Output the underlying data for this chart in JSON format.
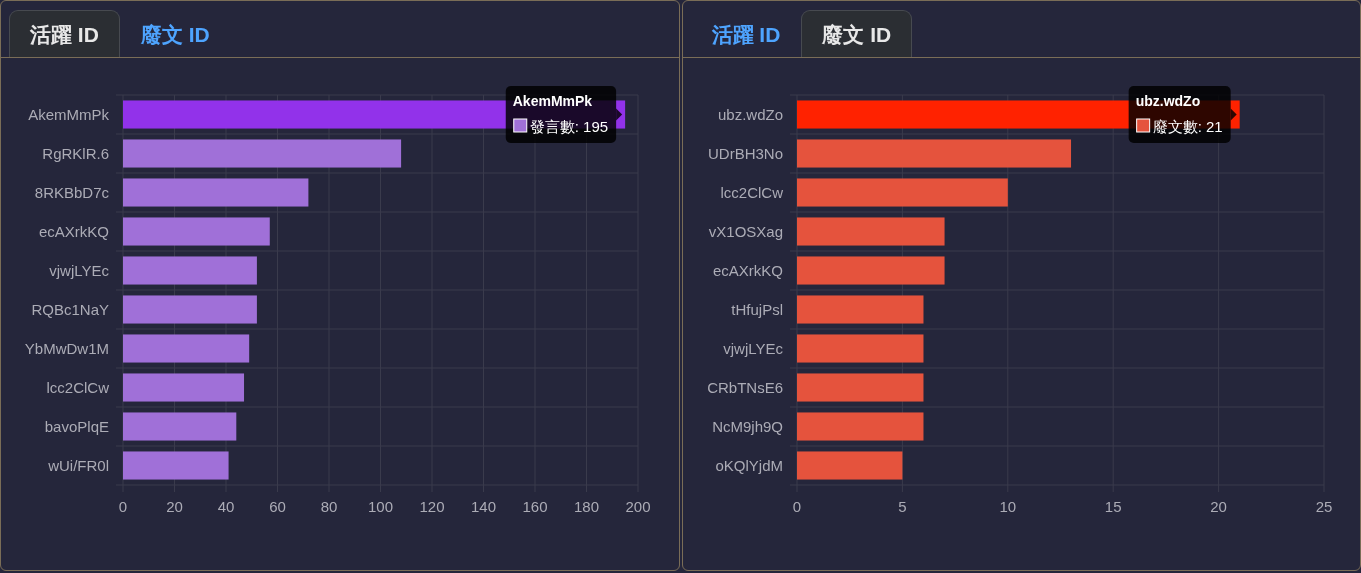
{
  "chart_data": [
    {
      "type": "bar",
      "orientation": "horizontal",
      "title": "活躍 ID",
      "annotations": [
        "廢文 ID"
      ],
      "categories": [
        "AkemMmPk",
        "RgRKlR.6",
        "8RKBbD7c",
        "ecAXrkKQ",
        "vjwjLYEc",
        "RQBc1NaY",
        "YbMwDw1M",
        "lcc2ClCw",
        "bavoPlqE",
        "wUi/FR0l"
      ],
      "series": [
        {
          "name": "發言數:",
          "color": "#a070d8",
          "colors": [
            "#9232ea",
            "#a070d8",
            "#a070d8",
            "#a070d8",
            "#a070d8",
            "#a070d8",
            "#a070d8",
            "#a070d8",
            "#a070d8",
            "#a070d8"
          ],
          "values": [
            195,
            108,
            72,
            57,
            52,
            52,
            49,
            47,
            44,
            41
          ],
          "value_labels": [
            "195",
            null,
            null,
            null,
            null,
            null,
            null,
            null,
            null,
            null
          ]
        }
      ],
      "xlim": [
        0,
        200
      ],
      "xticks": [
        0,
        20,
        40,
        60,
        80,
        100,
        120,
        140,
        160,
        180,
        200
      ],
      "grid": true
    },
    {
      "type": "bar",
      "orientation": "horizontal",
      "title": "廢文 ID",
      "annotations": [
        "活躍 ID"
      ],
      "categories": [
        "ubz.wdZo",
        "UDrBH3No",
        "lcc2ClCw",
        "vX1OSXag",
        "ecAXrkKQ",
        "tHfujPsl",
        "vjwjLYEc",
        "CRbTNsE6",
        "NcM9jh9Q",
        "oKQlYjdM"
      ],
      "series": [
        {
          "name": "廢文數:",
          "color": "#e5533d",
          "colors": [
            "#ff2200",
            "#e5533d",
            "#e5533d",
            "#e5533d",
            "#e5533d",
            "#e5533d",
            "#e5533d",
            "#e5533d",
            "#e5533d",
            "#e5533d"
          ],
          "values": [
            21,
            13,
            10,
            7,
            7,
            6,
            6,
            6,
            6,
            5
          ],
          "value_labels": [
            "21",
            null,
            null,
            null,
            null,
            null,
            null,
            null,
            null,
            null
          ]
        }
      ],
      "xlim": [
        0,
        25
      ],
      "xticks": [
        0,
        5,
        10,
        15,
        20,
        25
      ],
      "grid": true
    }
  ]
}
